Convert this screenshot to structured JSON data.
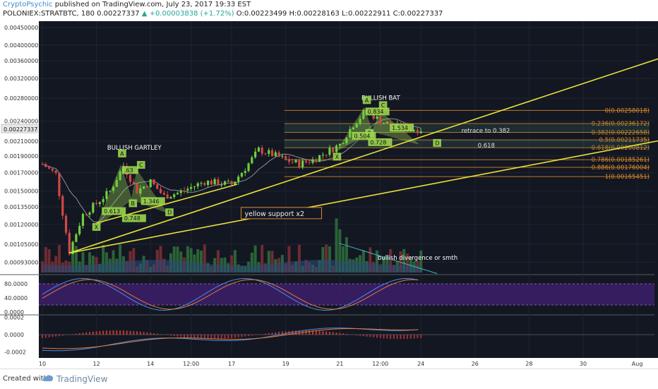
{
  "header": {
    "author": "CryptoPsychic",
    "published": "published on TradingView.com, July 23, 2017 19:33 EST",
    "symbol": "POLONIEX:STRATBTC, 180",
    "last_price": "0.00227337",
    "change": "▲ +0.00003838 (+1.72%)",
    "o_label": "O:",
    "o": "0.00223499",
    "h_label": "H:",
    "h": "0.00228163",
    "l_label": "L:",
    "l": "0.00222911",
    "c_label": "C:",
    "c": "0.00227337"
  },
  "footer": {
    "created_with": "Created with",
    "brand": "TradingView"
  },
  "colors": {
    "background": "#131722",
    "up": "#6fcf3c",
    "down": "#d04848",
    "trendline": "#e8e03a",
    "fib": "#d98a2b",
    "pattern_fill": "#9bd54e",
    "oscillator_band": "#3d1f6b"
  },
  "chart_data": {
    "type": "candlestick",
    "title": "",
    "y_axis": {
      "ticks": [
        "0.00450000",
        "0.00400000",
        "0.00360000",
        "0.00320000",
        "0.00280000",
        "0.00240000",
        "0.00210000",
        "0.00190000",
        "0.00170000",
        "0.00150000",
        "0.00135000",
        "0.00120000",
        "0.00105000",
        "0.00093000"
      ],
      "log_scale": true,
      "current_price_label": "0.00227337"
    },
    "x_axis": {
      "ticks": [
        "10",
        "12",
        "14",
        "12:00",
        "17",
        "19",
        "21",
        "12:00",
        "24",
        "26",
        "28",
        "30",
        "Aug"
      ]
    },
    "price_series_anchors": [
      {
        "x": "10",
        "price": 0.0018
      },
      {
        "x": "10.5",
        "price": 0.00168
      },
      {
        "x": "11",
        "price": 0.001
      },
      {
        "x": "11.5",
        "price": 0.00128
      },
      {
        "x": "12",
        "price": 0.00138
      },
      {
        "x": "12.5",
        "price": 0.0015
      },
      {
        "x": "13",
        "price": 0.00178
      },
      {
        "x": "13.5",
        "price": 0.0015
      },
      {
        "x": "14",
        "price": 0.0016
      },
      {
        "x": "14.5",
        "price": 0.00145
      },
      {
        "x": "15",
        "price": 0.00148
      },
      {
        "x": "16",
        "price": 0.0016
      },
      {
        "x": "17",
        "price": 0.00157
      },
      {
        "x": "17.5",
        "price": 0.00175
      },
      {
        "x": "18",
        "price": 0.00198
      },
      {
        "x": "18.5",
        "price": 0.00192
      },
      {
        "x": "19",
        "price": 0.00185
      },
      {
        "x": "19.5",
        "price": 0.0018
      },
      {
        "x": "20",
        "price": 0.00185
      },
      {
        "x": "21",
        "price": 0.00205
      },
      {
        "x": "21.5",
        "price": 0.00235
      },
      {
        "x": "22",
        "price": 0.00258
      },
      {
        "x": "22.5",
        "price": 0.0024
      },
      {
        "x": "23",
        "price": 0.00232
      },
      {
        "x": "23.5",
        "price": 0.00228
      },
      {
        "x": "24",
        "price": 0.00227
      }
    ],
    "fibonacci": [
      {
        "label": "0(0.00258018)",
        "price": 0.00258018
      },
      {
        "label": "0.236(0.00236172)",
        "price": 0.00236172
      },
      {
        "label": "0.382(0.00222658)",
        "price": 0.00222658
      },
      {
        "label": "0.5(0.00211735)",
        "price": 0.00211735
      },
      {
        "label": "0.618(0.00200812)",
        "price": 0.00200812
      },
      {
        "label": "0.786(0.00185261)",
        "price": 0.00185261
      },
      {
        "label": "0.886(0.00176004)",
        "price": 0.00176004
      },
      {
        "label": "1(0.00165451)",
        "price": 0.00165451
      }
    ],
    "annotations": [
      {
        "id": "gartley",
        "text": "BULLISH GARTLEY"
      },
      {
        "id": "bat",
        "text": "BULLISH BAT"
      },
      {
        "id": "retrace",
        "text": "retrace to 0.382"
      },
      {
        "id": "fib618",
        "text": "0.618"
      },
      {
        "id": "support",
        "text": "yellow support x2"
      },
      {
        "id": "divergence",
        "text": "bullish divergence or smth"
      }
    ],
    "gartley_points": {
      "X": "X",
      "A": "A",
      "B": "B",
      "C": "C",
      "D": "D",
      "r1": "0.613",
      "r2": "0.748",
      "r3": ".63",
      "r4": "1.346"
    },
    "bat_points": {
      "X": "X",
      "A": "A",
      "B": "B",
      "C": "C",
      "D": "D",
      "r1": "0.834",
      "r2": "0.504",
      "r3": "0.728",
      "r4": "1.534"
    },
    "stoch_rsi": {
      "ticks": [
        "80.0000",
        "40.0000",
        "0.0000"
      ],
      "range": [
        0,
        100
      ],
      "band": [
        20,
        80
      ]
    },
    "macd": {
      "ticks": [
        "0.0002",
        "0.0000",
        "-0.0002"
      ],
      "range": [
        -0.00027,
        0.00023
      ]
    }
  }
}
